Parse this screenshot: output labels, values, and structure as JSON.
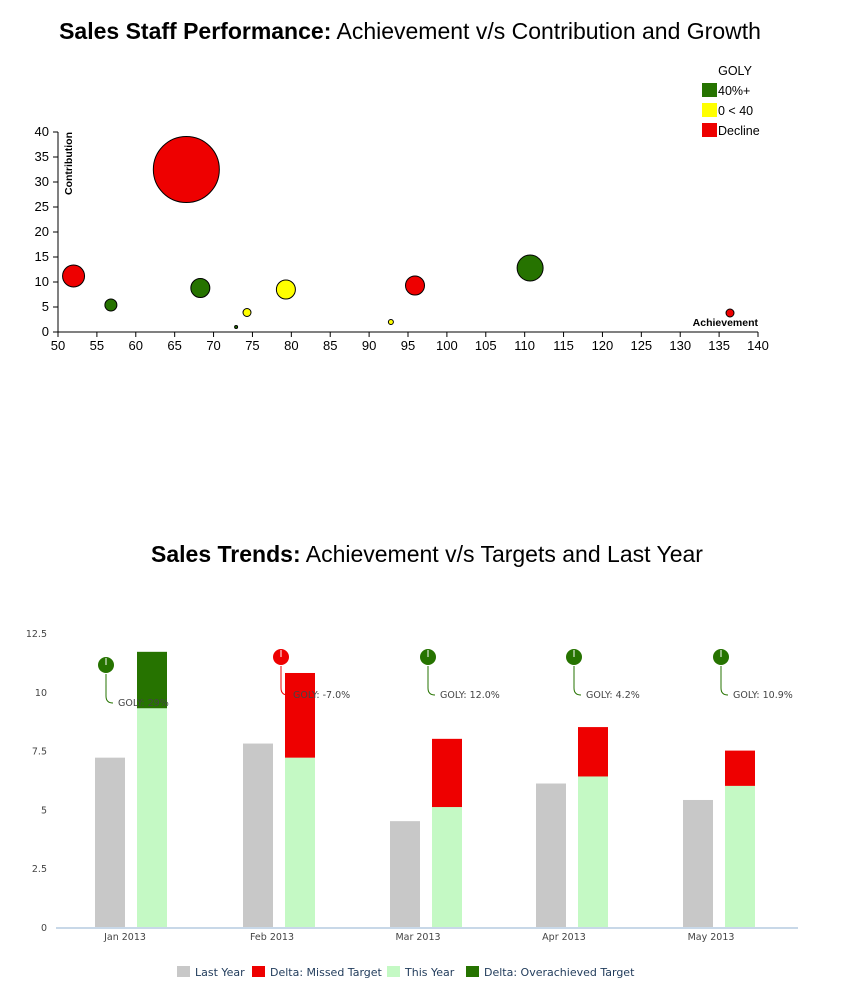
{
  "titles": {
    "chart1_bold": "Sales Staff Performance:",
    "chart1_rest": " Achievement v/s Contribution and Growth",
    "chart2_bold": "Sales Trends:",
    "chart2_rest": " Achievement v/s Targets and Last Year"
  },
  "chart_data": [
    {
      "type": "scatter",
      "title": "Sales Staff Performance: Achievement v/s Contribution and Growth",
      "xlabel": "Achievement",
      "ylabel": "Contribution",
      "xlim": [
        50,
        140
      ],
      "ylim": [
        0,
        40
      ],
      "xticks": [
        50,
        55,
        60,
        65,
        70,
        75,
        80,
        85,
        90,
        95,
        100,
        105,
        110,
        115,
        120,
        125,
        130,
        135,
        140
      ],
      "yticks": [
        0,
        5,
        10,
        15,
        20,
        25,
        30,
        35,
        40
      ],
      "legend": {
        "title": "GOLY",
        "placement": "top-right",
        "entries": [
          {
            "label": "40%+",
            "color": "#267300"
          },
          {
            "label": "0 < 40",
            "color": "#ffff00"
          },
          {
            "label": "Decline",
            "color": "#ee0000"
          }
        ]
      },
      "points": [
        {
          "x": 66.5,
          "y": 32.5,
          "size": 33,
          "category": "Decline"
        },
        {
          "x": 52.0,
          "y": 11.2,
          "size": 11,
          "category": "Decline"
        },
        {
          "x": 56.8,
          "y": 5.4,
          "size": 6,
          "category": "40%+"
        },
        {
          "x": 68.3,
          "y": 8.8,
          "size": 9.5,
          "category": "40%+"
        },
        {
          "x": 74.3,
          "y": 3.9,
          "size": 4,
          "category": "0 < 40"
        },
        {
          "x": 72.9,
          "y": 1.0,
          "size": 1.5,
          "category": "40%+"
        },
        {
          "x": 79.3,
          "y": 8.5,
          "size": 9.5,
          "category": "0 < 40"
        },
        {
          "x": 92.8,
          "y": 2.0,
          "size": 2.5,
          "category": "0 < 40"
        },
        {
          "x": 95.9,
          "y": 9.3,
          "size": 9.5,
          "category": "Decline"
        },
        {
          "x": 110.7,
          "y": 12.8,
          "size": 13,
          "category": "40%+"
        },
        {
          "x": 136.4,
          "y": 3.8,
          "size": 4,
          "category": "Decline"
        }
      ]
    },
    {
      "type": "bar",
      "title": "Sales Trends: Achievement v/s Targets and Last Year",
      "ylim": [
        0,
        12.5
      ],
      "yticks": [
        0,
        2.5,
        5,
        7.5,
        10,
        12.5
      ],
      "ytick_labels": [
        "0",
        "2.5",
        "5",
        "7.5",
        "10",
        "12.5"
      ],
      "categories": [
        "Jan 2013",
        "Feb 2013",
        "Mar 2013",
        "Apr 2013",
        "May 2013"
      ],
      "series": [
        {
          "name": "Last Year",
          "color": "#c8c8c8",
          "values": [
            7.2,
            7.8,
            4.5,
            6.1,
            5.4
          ]
        },
        {
          "name": "This Year",
          "color": "#c4f9c4",
          "values": [
            9.3,
            7.2,
            5.1,
            6.4,
            6.0
          ]
        },
        {
          "name": "Delta: Missed Target",
          "color": "#ee0000",
          "values": [
            0,
            3.6,
            2.9,
            2.1,
            1.5
          ]
        },
        {
          "name": "Delta: Overachieved Target",
          "color": "#267300",
          "values": [
            2.4,
            0,
            0,
            0,
            0
          ]
        }
      ],
      "goly": [
        {
          "label": "GOLY: 29%",
          "positive": true
        },
        {
          "label": "GOLY: -7.0%",
          "positive": false
        },
        {
          "label": "GOLY: 12.0%",
          "positive": true
        },
        {
          "label": "GOLY: 4.2%",
          "positive": true
        },
        {
          "label": "GOLY: 10.9%",
          "positive": true
        }
      ],
      "legend_placement": "bottom"
    }
  ],
  "colors": {
    "green": "#267300",
    "yellow": "#ffff00",
    "red": "#ee0000",
    "grey": "#c8c8c8",
    "lightgreen": "#c4f9c4"
  }
}
